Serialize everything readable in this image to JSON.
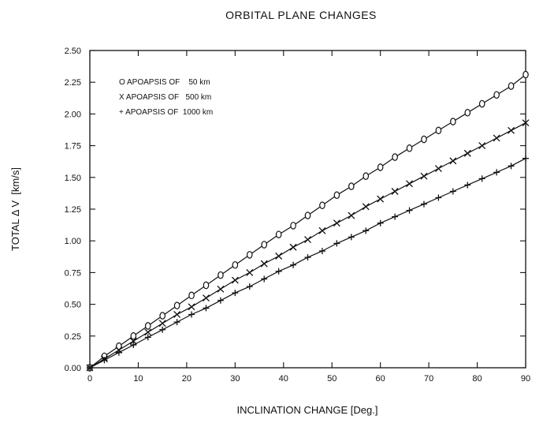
{
  "chart_data": {
    "type": "line",
    "title": "ORBITAL PLANE CHANGES",
    "xlabel": "INCLINATION CHANGE [Deg.]",
    "ylabel": "TOTAL Δ V  [km/s]",
    "xlim": [
      0,
      90
    ],
    "ylim": [
      0,
      2.5
    ],
    "xticks": [
      0,
      10,
      20,
      30,
      40,
      50,
      60,
      70,
      80,
      90
    ],
    "yticks": [
      0.0,
      0.25,
      0.5,
      0.75,
      1.0,
      1.25,
      1.5,
      1.75,
      2.0,
      2.25,
      2.5
    ],
    "ytick_labels": [
      "0.00",
      "0.25",
      "0.50",
      "0.75",
      "1.00",
      "1.25",
      "1.50",
      "1.75",
      "2.00",
      "2.25",
      "2.50"
    ],
    "grid": false,
    "legend_position": "top-left",
    "series": [
      {
        "name": "O APOAPSIS OF    50 km",
        "marker": "o",
        "x": [
          0,
          3,
          6,
          9,
          12,
          15,
          18,
          21,
          24,
          27,
          30,
          33,
          36,
          39,
          42,
          45,
          48,
          51,
          54,
          57,
          60,
          63,
          66,
          69,
          72,
          75,
          78,
          81,
          84,
          87,
          90
        ],
        "y": [
          0.0,
          0.09,
          0.17,
          0.25,
          0.33,
          0.41,
          0.49,
          0.57,
          0.65,
          0.73,
          0.81,
          0.89,
          0.97,
          1.05,
          1.12,
          1.2,
          1.28,
          1.36,
          1.43,
          1.51,
          1.58,
          1.66,
          1.73,
          1.8,
          1.87,
          1.94,
          2.01,
          2.08,
          2.15,
          2.22,
          2.31
        ]
      },
      {
        "name": "X APOAPSIS OF   500 km",
        "marker": "x",
        "x": [
          0,
          3,
          6,
          9,
          12,
          15,
          18,
          21,
          24,
          27,
          30,
          33,
          36,
          39,
          42,
          45,
          48,
          51,
          54,
          57,
          60,
          63,
          66,
          69,
          72,
          75,
          78,
          81,
          84,
          87,
          90
        ],
        "y": [
          0.0,
          0.07,
          0.14,
          0.21,
          0.28,
          0.35,
          0.42,
          0.48,
          0.55,
          0.62,
          0.69,
          0.75,
          0.82,
          0.88,
          0.95,
          1.01,
          1.08,
          1.14,
          1.2,
          1.27,
          1.33,
          1.39,
          1.45,
          1.51,
          1.57,
          1.63,
          1.69,
          1.75,
          1.81,
          1.87,
          1.93
        ]
      },
      {
        "name": "+ APOAPSIS OF  1000 km",
        "marker": "+",
        "x": [
          0,
          3,
          6,
          9,
          12,
          15,
          18,
          21,
          24,
          27,
          30,
          33,
          36,
          39,
          42,
          45,
          48,
          51,
          54,
          57,
          60,
          63,
          66,
          69,
          72,
          75,
          78,
          81,
          84,
          87,
          90
        ],
        "y": [
          0.0,
          0.06,
          0.12,
          0.18,
          0.24,
          0.3,
          0.36,
          0.42,
          0.47,
          0.53,
          0.59,
          0.64,
          0.7,
          0.76,
          0.81,
          0.87,
          0.92,
          0.98,
          1.03,
          1.08,
          1.14,
          1.19,
          1.24,
          1.29,
          1.34,
          1.39,
          1.44,
          1.49,
          1.54,
          1.59,
          1.65
        ]
      }
    ],
    "colors": {
      "line": "#111111",
      "background": "#ffffff"
    }
  }
}
